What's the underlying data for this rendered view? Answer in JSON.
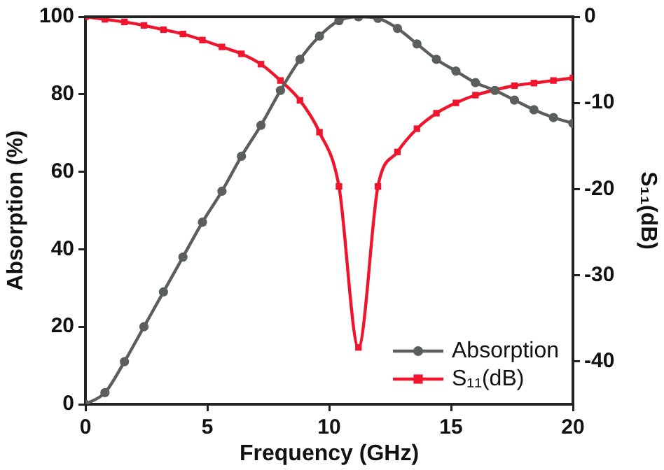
{
  "chart_data": {
    "type": "line",
    "xlabel": "Frequency (GHz)",
    "ylabel": "Absorption (%)",
    "y2label": "S₁₁(dB)",
    "xlim": [
      0,
      20
    ],
    "xticks": [
      0,
      5,
      10,
      15,
      20
    ],
    "ylim": [
      0,
      100
    ],
    "yticks": [
      0,
      20,
      40,
      60,
      80,
      100
    ],
    "y2lim": [
      -45,
      0
    ],
    "y2ticks": [
      -40,
      -30,
      -20,
      -10,
      0
    ],
    "legend": "bottom right",
    "grid": false,
    "line_style": "solid",
    "series": [
      {
        "name": "Absorption",
        "color": "#5a5f5c",
        "marker": "circle",
        "x": [
          0,
          0.8,
          1.6,
          2.4,
          3.2,
          4.0,
          4.8,
          5.6,
          6.4,
          7.2,
          8.0,
          8.8,
          9.6,
          10.4,
          11.2,
          12.0,
          12.8,
          13.6,
          14.4,
          15.2,
          16.0,
          16.8,
          17.6,
          18.4,
          19.2,
          20
        ],
        "values": [
          0,
          3,
          11,
          20,
          29,
          38,
          47,
          55,
          64,
          72,
          81,
          89,
          95,
          99,
          100,
          99.6,
          97,
          93,
          89,
          86,
          83,
          81,
          78.5,
          76,
          74,
          72.5
        ]
      },
      {
        "name": "S₁₁(dB)",
        "color": "#f0142d",
        "marker": "square",
        "axis": "y2",
        "x": [
          0,
          0.8,
          1.6,
          2.4,
          3.2,
          4.0,
          4.8,
          5.6,
          6.4,
          7.2,
          8.0,
          8.8,
          9.6,
          10.4,
          11.2,
          12.0,
          12.8,
          13.6,
          14.4,
          15.2,
          16.0,
          16.8,
          17.6,
          18.4,
          19.2,
          20
        ],
        "values": [
          0,
          -0.3,
          -0.6,
          -1.0,
          -1.5,
          -2.0,
          -2.7,
          -3.5,
          -4.3,
          -5.5,
          -7.4,
          -9.7,
          -13.4,
          -19.7,
          -38.4,
          -19.7,
          -15.7,
          -13,
          -11.2,
          -10,
          -9.1,
          -8.5,
          -8,
          -7.7,
          -7.4,
          -7.1
        ]
      }
    ]
  }
}
